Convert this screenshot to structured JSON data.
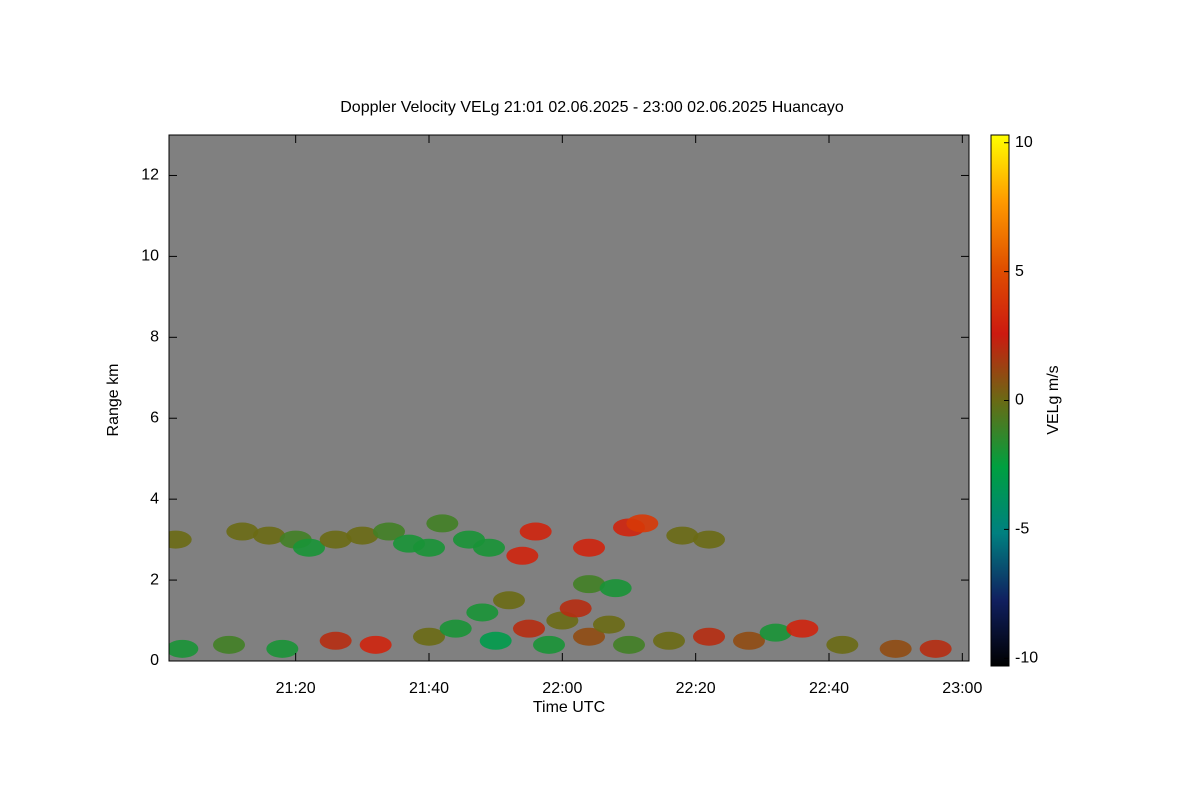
{
  "chart_data": {
    "type": "heatmap",
    "title": "Doppler Velocity VELg   21:01 02.06.2025 - 23:00 02.06.2025 Huancayo",
    "x_label": "Time UTC",
    "y_label": "Range km",
    "colorbar_label": "VELg m/s",
    "background": "#808080",
    "xlim": [
      "21:01",
      "23:01"
    ],
    "xticks": [
      "21:20",
      "21:40",
      "22:00",
      "22:20",
      "22:40",
      "23:00"
    ],
    "ylim": [
      0,
      13
    ],
    "yticks": [
      0,
      2,
      4,
      6,
      8,
      10,
      12
    ],
    "clim": [
      -10.3,
      10.3
    ],
    "cticks": [
      -10,
      -5,
      0,
      5,
      10
    ],
    "colorscale": [
      "#000000",
      "#102060",
      "#008080",
      "#00a040",
      "#6a6a14",
      "#cc1a10",
      "#e05000",
      "#ff9a00",
      "#ffff00"
    ],
    "points": {
      "x": [
        "21:02",
        "21:12",
        "21:16",
        "21:20",
        "21:22",
        "21:26",
        "21:30",
        "21:34",
        "21:37",
        "21:40",
        "21:42",
        "21:46",
        "21:49",
        "21:54",
        "21:56",
        "22:04",
        "22:10",
        "22:12",
        "22:18",
        "22:22",
        "22:04",
        "22:08",
        "21:03",
        "21:10",
        "21:18",
        "21:26",
        "21:32",
        "21:40",
        "21:44",
        "21:48",
        "21:50",
        "21:52",
        "21:55",
        "21:58",
        "22:00",
        "22:02",
        "22:04",
        "22:07",
        "22:10",
        "22:16",
        "22:22",
        "22:28",
        "22:32",
        "22:36",
        "22:42",
        "22:50",
        "22:56"
      ],
      "y": [
        3.0,
        3.2,
        3.1,
        3.0,
        2.8,
        3.0,
        3.1,
        3.2,
        2.9,
        2.8,
        3.4,
        3.0,
        2.8,
        2.6,
        3.2,
        2.8,
        3.3,
        3.4,
        3.1,
        3.0,
        1.9,
        1.8,
        0.3,
        0.4,
        0.3,
        0.5,
        0.4,
        0.6,
        0.8,
        1.2,
        0.5,
        1.5,
        0.8,
        0.4,
        1.0,
        1.3,
        0.6,
        0.9,
        0.4,
        0.5,
        0.6,
        0.5,
        0.7,
        0.8,
        0.4,
        0.3,
        0.3
      ],
      "values": [
        0,
        0,
        0,
        -1,
        -2,
        0,
        0,
        -1,
        -2,
        -2,
        -1,
        -2,
        -2,
        3,
        3,
        3,
        3,
        4,
        0,
        0,
        -1,
        -2,
        -2,
        -1,
        -2,
        2,
        3,
        0,
        -2,
        -2,
        -3,
        0,
        2,
        -2,
        0,
        2,
        1,
        0,
        -1,
        0,
        2,
        1,
        -2,
        3,
        0,
        1,
        2
      ]
    }
  }
}
